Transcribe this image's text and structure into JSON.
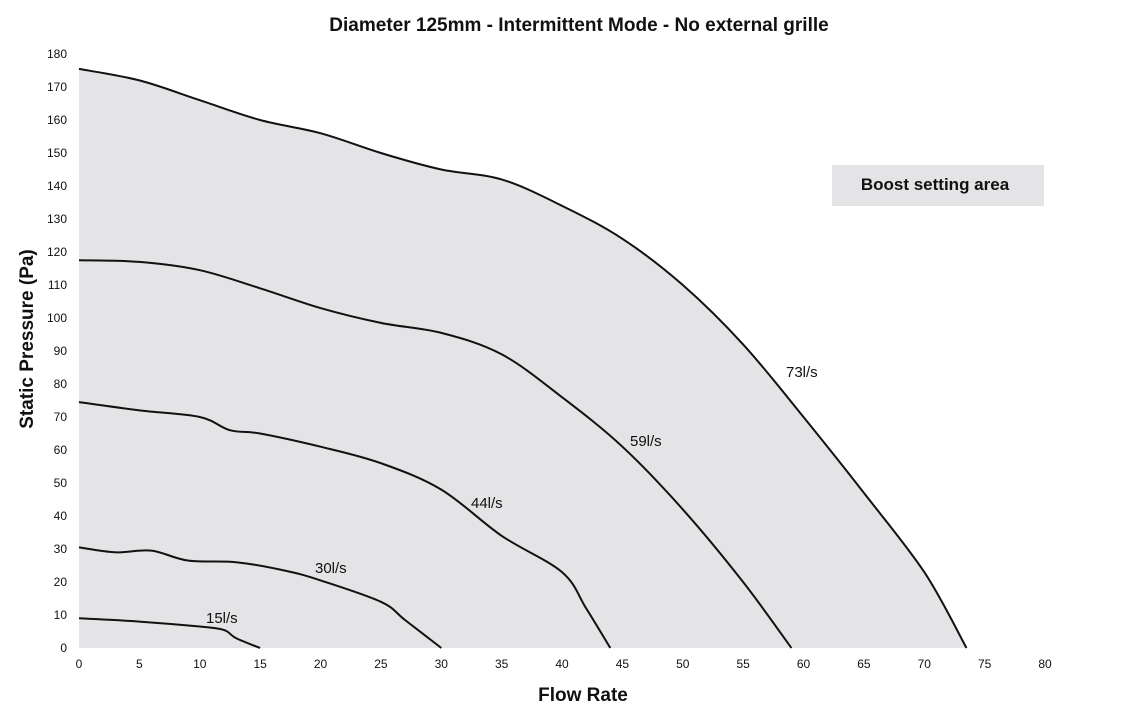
{
  "chart_data": {
    "type": "line",
    "title": "Diameter 125mm - Intermittent Mode - No external grille",
    "xlabel": "Flow Rate",
    "ylabel": "Static Pressure (Pa)",
    "xlim": [
      0,
      80
    ],
    "ylim": [
      0,
      180
    ],
    "x_ticks": [
      0,
      5,
      10,
      15,
      20,
      25,
      30,
      35,
      40,
      45,
      50,
      55,
      60,
      65,
      70,
      75,
      80
    ],
    "y_ticks": [
      0,
      10,
      20,
      30,
      40,
      50,
      60,
      70,
      80,
      90,
      100,
      110,
      120,
      130,
      140,
      150,
      160,
      170,
      180
    ],
    "grid": false,
    "shaded_region": "area under 73l/s curve",
    "area_label": "Boost setting area",
    "colors": {
      "area": "#e4e3e5",
      "line": "#111111"
    },
    "series": [
      {
        "name": "73l/s",
        "points": [
          [
            0,
            175.5
          ],
          [
            5,
            172
          ],
          [
            10,
            166
          ],
          [
            15,
            160
          ],
          [
            20,
            156
          ],
          [
            25,
            150
          ],
          [
            30,
            145
          ],
          [
            35,
            142
          ],
          [
            40,
            134
          ],
          [
            45,
            124
          ],
          [
            50,
            110
          ],
          [
            55,
            92
          ],
          [
            60,
            70
          ],
          [
            65,
            47
          ],
          [
            70,
            23
          ],
          [
            73.5,
            0
          ]
        ]
      },
      {
        "name": "59l/s",
        "points": [
          [
            0,
            117.5
          ],
          [
            5,
            117
          ],
          [
            10,
            114.5
          ],
          [
            15,
            109
          ],
          [
            20,
            103
          ],
          [
            25,
            98.5
          ],
          [
            30,
            95.5
          ],
          [
            35,
            89
          ],
          [
            40,
            76
          ],
          [
            45,
            61
          ],
          [
            50,
            42
          ],
          [
            55,
            20
          ],
          [
            59,
            0
          ]
        ]
      },
      {
        "name": "44l/s",
        "points": [
          [
            0,
            74.5
          ],
          [
            5,
            72
          ],
          [
            10,
            70
          ],
          [
            12.5,
            66
          ],
          [
            15,
            65
          ],
          [
            20,
            61
          ],
          [
            25,
            56
          ],
          [
            30,
            48
          ],
          [
            35,
            34
          ],
          [
            40,
            23
          ],
          [
            42,
            12
          ],
          [
            44,
            0
          ]
        ]
      },
      {
        "name": "30l/s",
        "points": [
          [
            0,
            30.5
          ],
          [
            3,
            29
          ],
          [
            6,
            29.5
          ],
          [
            9,
            26.5
          ],
          [
            13,
            26
          ],
          [
            17,
            23.5
          ],
          [
            20,
            20.5
          ],
          [
            25,
            14
          ],
          [
            27,
            8.5
          ],
          [
            30,
            0
          ]
        ]
      },
      {
        "name": "15l/s",
        "points": [
          [
            0,
            9
          ],
          [
            5,
            8
          ],
          [
            10,
            6.5
          ],
          [
            12,
            5.5
          ],
          [
            13,
            3
          ],
          [
            15,
            0
          ]
        ]
      }
    ]
  }
}
